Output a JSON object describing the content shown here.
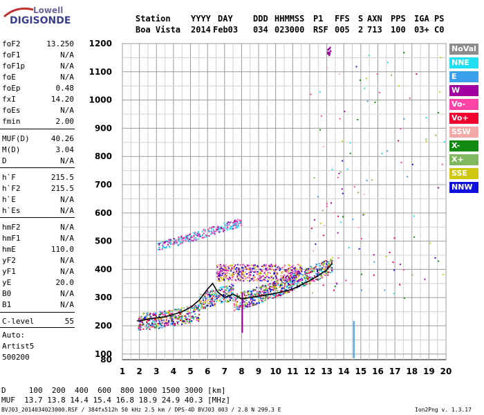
{
  "logo": {
    "line1": "Lowell",
    "line2": "DIGISONDE"
  },
  "header": {
    "labels": [
      {
        "text": "Station",
        "x": 196
      },
      {
        "text": "YYYY",
        "x": 276
      },
      {
        "text": "DAY",
        "x": 315
      },
      {
        "text": "DDD",
        "x": 366
      },
      {
        "text": "HHMMSS",
        "x": 397
      },
      {
        "text": "P1",
        "x": 453
      },
      {
        "text": "FFS",
        "x": 484
      },
      {
        "text": "S",
        "x": 518
      },
      {
        "text": "AXN",
        "x": 531
      },
      {
        "text": "PPS",
        "x": 565
      },
      {
        "text": "IGA",
        "x": 599
      },
      {
        "text": "PS",
        "x": 628
      }
    ],
    "values": [
      {
        "text": "Boa Vista",
        "x": 196
      },
      {
        "text": "2014",
        "x": 276
      },
      {
        "text": "Feb03",
        "x": 308
      },
      {
        "text": "034",
        "x": 366
      },
      {
        "text": "023000",
        "x": 397
      },
      {
        "text": "RSF",
        "x": 453
      },
      {
        "text": "005",
        "x": 484
      },
      {
        "text": "2",
        "x": 518
      },
      {
        "text": "713",
        "x": 531
      },
      {
        "text": "100",
        "x": 565
      },
      {
        "text": "03+",
        "x": 599
      },
      {
        "text": "C0",
        "x": 628
      }
    ]
  },
  "params": [
    {
      "name": "foF2",
      "value": "13.250"
    },
    {
      "name": "foF1",
      "value": "N/A"
    },
    {
      "name": "foF1p",
      "value": "N/A"
    },
    {
      "name": "foE",
      "value": "N/A"
    },
    {
      "name": "foEp",
      "value": "0.48"
    },
    {
      "name": "fxI",
      "value": "14.20"
    },
    {
      "name": "foEs",
      "value": "N/A"
    },
    {
      "name": "fmin",
      "value": "2.00"
    },
    {
      "name": "MUF(D)",
      "value": "40.26"
    },
    {
      "name": "M(D)",
      "value": "3.04"
    },
    {
      "name": "D",
      "value": "N/A"
    },
    {
      "name": "h`F",
      "value": "215.5"
    },
    {
      "name": "h`F2",
      "value": "215.5"
    },
    {
      "name": "h`E",
      "value": "N/A"
    },
    {
      "name": "h`Es",
      "value": "N/A"
    },
    {
      "name": "hmF2",
      "value": "N/A"
    },
    {
      "name": "hmF1",
      "value": "N/A"
    },
    {
      "name": "hmE",
      "value": "110.0"
    },
    {
      "name": "yF2",
      "value": "N/A"
    },
    {
      "name": "yF1",
      "value": "N/A"
    },
    {
      "name": "yE",
      "value": "20.0"
    },
    {
      "name": "B0",
      "value": "N/A"
    },
    {
      "name": "B1",
      "value": "N/A"
    },
    {
      "name": "C-level",
      "value": "55"
    }
  ],
  "autoscale": {
    "line1": "Auto:",
    "line2": "Artist5",
    "line3": "500200"
  },
  "legend": [
    {
      "label": "NoVal",
      "color": "#8c8c8c"
    },
    {
      "label": "NNE",
      "color": "#1ee0f0"
    },
    {
      "label": "E",
      "color": "#3aa0ee"
    },
    {
      "label": "W",
      "color": "#a000a0"
    },
    {
      "label": "Vo-",
      "color": "#ff44a8"
    },
    {
      "label": "Vo+",
      "color": "#f00030"
    },
    {
      "label": "SSW",
      "color": "#f4a8a8"
    },
    {
      "label": "X-",
      "color": "#108a10"
    },
    {
      "label": "X+",
      "color": "#80b860"
    },
    {
      "label": "SSE",
      "color": "#d0c810"
    },
    {
      "label": "NNW",
      "color": "#1010e0"
    }
  ],
  "muf_table": {
    "d_line": "D     100  200  400  600  800 1000 1500 3000 [km]",
    "muf_line": "MUF  13.7 13.8 14.4 15.4 16.8 18.9 24.9 40.3 [MHz]"
  },
  "footer": {
    "left": "BVJ03_2014034023000.RSF / 384fx512h 50 kHz 2.5 km / DPS-4D BVJ03 003 / 2.8 N 299.3 E",
    "right": "Ion2Png v. 1.3.17"
  },
  "chart_data": {
    "type": "scatter",
    "title": "",
    "xlabel": "",
    "ylabel": "",
    "xlim": [
      1,
      20
    ],
    "ylim": [
      80,
      1200
    ],
    "x_ticks": [
      1,
      2,
      3,
      4,
      5,
      6,
      7,
      8,
      9,
      10,
      11,
      12,
      13,
      14,
      15,
      16,
      17,
      18,
      19,
      20
    ],
    "y_ticks": [
      80,
      100,
      200,
      300,
      400,
      500,
      600,
      700,
      800,
      900,
      1000,
      1100,
      1200
    ],
    "grid": true,
    "trace": {
      "x": [
        1.9,
        2.2,
        2.6,
        3.0,
        3.5,
        4.0,
        4.5,
        5.0,
        5.5,
        6.0,
        6.3,
        6.6,
        7.0,
        7.5,
        8.0,
        8.5,
        9.0,
        9.5,
        10.0,
        10.5,
        11.0,
        11.5,
        12.0,
        12.5,
        13.0,
        13.3
      ],
      "y": [
        218,
        220,
        225,
        228,
        232,
        240,
        250,
        265,
        290,
        330,
        350,
        320,
        300,
        312,
        296,
        300,
        305,
        310,
        315,
        322,
        330,
        345,
        360,
        378,
        398,
        420
      ]
    }
  }
}
